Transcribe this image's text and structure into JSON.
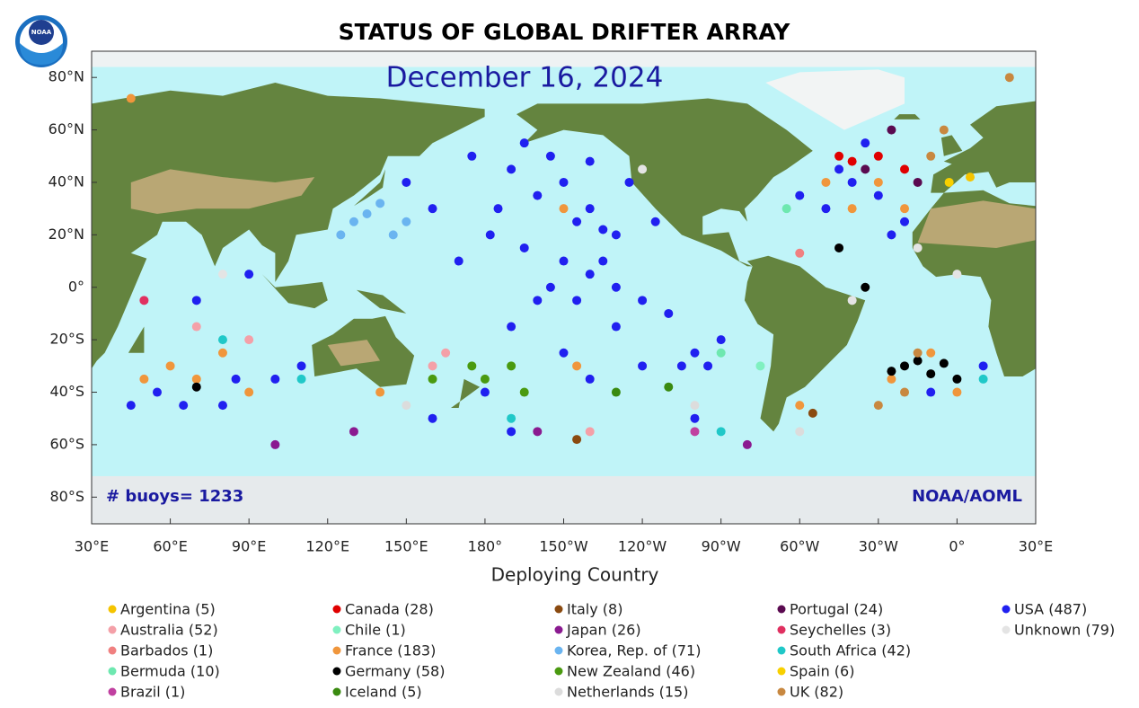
{
  "title": "STATUS OF GLOBAL DRIFTER ARRAY",
  "date": "December 16, 2024",
  "buoy_count": "# buoys= 1233",
  "credit": "NOAA/AOML",
  "x_label": "Deploying Country",
  "x_ticks": [
    "30°E",
    "60°E",
    "90°E",
    "120°E",
    "150°E",
    "180°",
    "150°W",
    "120°W",
    "90°W",
    "60°W",
    "30°W",
    "0°",
    "30°E"
  ],
  "y_ticks": [
    "80°N",
    "60°N",
    "40°N",
    "20°N",
    "0°",
    "20°S",
    "40°S",
    "60°S",
    "80°S"
  ],
  "legend": [
    {
      "label": "Argentina (5)",
      "color": "#f5c400"
    },
    {
      "label": "Australia (52)",
      "color": "#f4a0a8"
    },
    {
      "label": "Barbados (1)",
      "color": "#f08080"
    },
    {
      "label": "Bermuda (10)",
      "color": "#6ee8b0"
    },
    {
      "label": "Brazil (1)",
      "color": "#c040a0"
    },
    {
      "label": "Canada (28)",
      "color": "#e00000"
    },
    {
      "label": "Chile (1)",
      "color": "#80f0c0"
    },
    {
      "label": "France (183)",
      "color": "#f0963c"
    },
    {
      "label": "Germany (58)",
      "color": "#000000"
    },
    {
      "label": "Iceland (5)",
      "color": "#3a8a10"
    },
    {
      "label": "Italy (8)",
      "color": "#8a4a10"
    },
    {
      "label": "Japan (26)",
      "color": "#8a1a90"
    },
    {
      "label": "Korea, Rep. of (71)",
      "color": "#6ab4f0"
    },
    {
      "label": "New Zealand (46)",
      "color": "#4a9a10"
    },
    {
      "label": "Netherlands (15)",
      "color": "#dcdcdc"
    },
    {
      "label": "Portugal (24)",
      "color": "#5a0a50"
    },
    {
      "label": "Seychelles (3)",
      "color": "#e03060"
    },
    {
      "label": "South Africa (42)",
      "color": "#20c8c8"
    },
    {
      "label": "Spain (6)",
      "color": "#f8d000"
    },
    {
      "label": "UK (82)",
      "color": "#c88840"
    },
    {
      "label": "USA (487)",
      "color": "#2020f0"
    },
    {
      "label": "Unknown (79)",
      "color": "#e4e4e4"
    }
  ],
  "drifters": [
    [
      -150,
      40,
      20
    ],
    [
      -140,
      30,
      20
    ],
    [
      -135,
      22,
      20
    ],
    [
      -130,
      20,
      20
    ],
    [
      -145,
      25,
      20
    ],
    [
      -160,
      35,
      20
    ],
    [
      -170,
      45,
      20
    ],
    [
      -155,
      50,
      20
    ],
    [
      -175,
      30,
      20
    ],
    [
      -165,
      15,
      20
    ],
    [
      -150,
      10,
      20
    ],
    [
      -140,
      5,
      20
    ],
    [
      -130,
      0,
      20
    ],
    [
      -120,
      -5,
      20
    ],
    [
      -110,
      -10,
      20
    ],
    [
      -100,
      -25,
      20
    ],
    [
      -95,
      -30,
      20
    ],
    [
      -105,
      -30,
      20
    ],
    [
      -90,
      -20,
      20
    ],
    [
      -160,
      -5,
      20
    ],
    [
      -170,
      -15,
      20
    ],
    [
      -150,
      -25,
      20
    ],
    [
      -140,
      -35,
      20
    ],
    [
      -120,
      -30,
      20
    ],
    [
      -130,
      -15,
      20
    ],
    [
      -180,
      -40,
      20
    ],
    [
      170,
      10,
      20
    ],
    [
      160,
      30,
      20
    ],
    [
      150,
      40,
      20
    ],
    [
      175,
      50,
      20
    ],
    [
      -178,
      20,
      20
    ],
    [
      -125,
      40,
      20
    ],
    [
      -115,
      25,
      20
    ],
    [
      -135,
      10,
      20
    ],
    [
      -145,
      -5,
      20
    ],
    [
      -155,
      0,
      20
    ],
    [
      -165,
      55,
      20
    ],
    [
      -140,
      48,
      20
    ],
    [
      -60,
      35,
      20
    ],
    [
      -50,
      30,
      20
    ],
    [
      -40,
      40,
      20
    ],
    [
      -30,
      35,
      20
    ],
    [
      -20,
      25,
      20
    ],
    [
      -45,
      45,
      20
    ],
    [
      -35,
      55,
      20
    ],
    [
      -25,
      20,
      20
    ],
    [
      -10,
      -40,
      20
    ],
    [
      10,
      -30,
      20
    ],
    [
      55,
      -40,
      20
    ],
    [
      45,
      -45,
      20
    ],
    [
      65,
      -45,
      20
    ],
    [
      80,
      -45,
      20
    ],
    [
      85,
      -35,
      20
    ],
    [
      100,
      -35,
      20
    ],
    [
      110,
      -30,
      20
    ],
    [
      90,
      5,
      20
    ],
    [
      70,
      -5,
      20
    ],
    [
      160,
      -50,
      20
    ],
    [
      -170,
      -55,
      20
    ],
    [
      -100,
      -50,
      20
    ],
    [
      60,
      -30,
      7
    ],
    [
      70,
      -35,
      7
    ],
    [
      80,
      -25,
      7
    ],
    [
      90,
      -40,
      7
    ],
    [
      50,
      -35,
      7
    ],
    [
      -40,
      30,
      7
    ],
    [
      -30,
      40,
      7
    ],
    [
      -20,
      30,
      7
    ],
    [
      -25,
      -35,
      7
    ],
    [
      -10,
      -25,
      7
    ],
    [
      0,
      -40,
      7
    ],
    [
      -50,
      40,
      7
    ],
    [
      -150,
      30,
      7
    ],
    [
      -60,
      -45,
      7
    ],
    [
      140,
      -40,
      7
    ],
    [
      45,
      72,
      7
    ],
    [
      -145,
      -30,
      7
    ],
    [
      130,
      25,
      12
    ],
    [
      135,
      28,
      12
    ],
    [
      125,
      20,
      12
    ],
    [
      140,
      32,
      12
    ],
    [
      150,
      25,
      12
    ],
    [
      145,
      20,
      12
    ],
    [
      175,
      -30,
      13
    ],
    [
      -170,
      -30,
      13
    ],
    [
      180,
      -35,
      13
    ],
    [
      -165,
      -40,
      13
    ],
    [
      160,
      -35,
      13
    ],
    [
      -130,
      -40,
      9
    ],
    [
      -110,
      -38,
      9
    ],
    [
      -20,
      -30,
      8
    ],
    [
      -15,
      -28,
      8
    ],
    [
      -10,
      -33,
      8
    ],
    [
      -5,
      -29,
      8
    ],
    [
      -25,
      -32,
      8
    ],
    [
      0,
      -35,
      8
    ],
    [
      -45,
      15,
      8
    ],
    [
      -35,
      0,
      8
    ],
    [
      70,
      -38,
      8
    ],
    [
      -45,
      50,
      5
    ],
    [
      -40,
      48,
      5
    ],
    [
      -30,
      50,
      5
    ],
    [
      -20,
      45,
      5
    ],
    [
      -15,
      -25,
      19
    ],
    [
      -30,
      -45,
      19
    ],
    [
      -20,
      -40,
      19
    ],
    [
      -10,
      50,
      19
    ],
    [
      -5,
      60,
      19
    ],
    [
      20,
      80,
      19
    ],
    [
      70,
      -15,
      1
    ],
    [
      90,
      -20,
      1
    ],
    [
      160,
      -30,
      1
    ],
    [
      165,
      -25,
      1
    ],
    [
      -140,
      -55,
      1
    ],
    [
      80,
      -20,
      17
    ],
    [
      110,
      -35,
      17
    ],
    [
      -170,
      -50,
      17
    ],
    [
      -90,
      -55,
      17
    ],
    [
      10,
      -35,
      17
    ],
    [
      100,
      -60,
      11
    ],
    [
      130,
      -55,
      11
    ],
    [
      -160,
      -55,
      11
    ],
    [
      -80,
      -60,
      11
    ],
    [
      -25,
      60,
      15
    ],
    [
      -15,
      40,
      15
    ],
    [
      -35,
      45,
      15
    ],
    [
      -15,
      15,
      21
    ],
    [
      -120,
      45,
      21
    ],
    [
      80,
      5,
      21
    ],
    [
      -40,
      -5,
      21
    ],
    [
      0,
      5,
      21
    ],
    [
      -60,
      -55,
      14
    ],
    [
      -100,
      -45,
      14
    ],
    [
      150,
      -45,
      14
    ],
    [
      -145,
      -58,
      10
    ],
    [
      -55,
      -48,
      10
    ],
    [
      -3,
      40,
      18
    ],
    [
      5,
      42,
      0
    ],
    [
      50,
      -5,
      16
    ],
    [
      -65,
      30,
      3
    ],
    [
      -90,
      -25,
      3
    ],
    [
      -100,
      -55,
      4
    ],
    [
      -60,
      13,
      2
    ],
    [
      -75,
      -30,
      6
    ]
  ]
}
